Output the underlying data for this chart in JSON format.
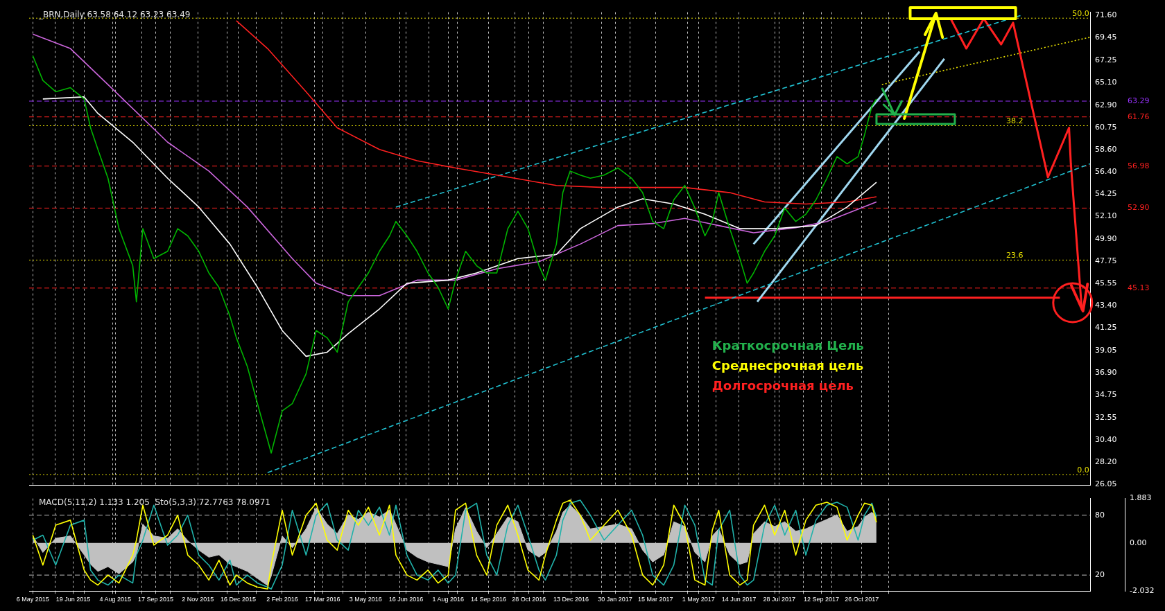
{
  "chart_data": [
    {
      "type": "line",
      "title": "_BRN,Daily 63.58 64.12 63.23 63.49",
      "x": [
        "2015-05-06",
        "2015-05-17",
        "2015-05-31",
        "2015-06-16",
        "2015-07-01",
        "2015-07-08",
        "2015-07-16",
        "2015-07-27",
        "2015-08-08",
        "2015-08-23",
        "2015-08-27",
        "2015-09-03",
        "2015-09-15",
        "2015-09-30",
        "2015-10-11",
        "2015-10-22",
        "2015-11-03",
        "2015-11-14",
        "2015-11-25",
        "2015-12-07",
        "2015-12-14",
        "2015-12-26",
        "2016-01-06",
        "2016-01-17",
        "2016-01-21",
        "2016-02-02",
        "2016-02-13",
        "2016-02-28",
        "2016-03-10",
        "2016-03-22",
        "2016-04-02",
        "2016-04-14",
        "2016-04-25",
        "2016-05-06",
        "2016-05-18",
        "2016-05-29",
        "2016-06-05",
        "2016-06-17",
        "2016-06-28",
        "2016-07-10",
        "2016-07-21",
        "2016-08-01",
        "2016-08-09",
        "2016-08-20",
        "2016-09-01",
        "2016-09-12",
        "2016-09-23",
        "2016-10-05",
        "2016-10-16",
        "2016-10-27",
        "2016-11-08",
        "2016-11-15",
        "2016-11-27",
        "2016-12-04",
        "2016-12-12",
        "2016-12-23",
        "2017-01-03",
        "2017-01-18",
        "2017-02-02",
        "2017-02-17",
        "2017-03-01",
        "2017-03-12",
        "2017-03-24",
        "2017-04-04",
        "2017-04-16",
        "2017-04-27",
        "2017-05-08",
        "2017-05-16",
        "2017-05-23",
        "2017-06-04",
        "2017-06-15",
        "2017-06-23",
        "2017-06-30",
        "2017-07-12",
        "2017-07-23",
        "2017-08-03",
        "2017-08-15",
        "2017-08-26",
        "2017-09-06",
        "2017-09-18",
        "2017-09-29",
        "2017-10-10",
        "2017-10-22",
        "2017-10-29",
        "2017-11-06",
        "2017-11-11"
      ],
      "series": [
        {
          "color": "#00b400",
          "values": [
            67.7,
            65.3,
            64.2,
            64.6,
            63.5,
            60.7,
            58.6,
            55.8,
            50.9,
            47.3,
            43.8,
            50.9,
            48.0,
            48.7,
            50.9,
            50.2,
            48.7,
            46.6,
            45.2,
            42.4,
            40.3,
            37.5,
            33.9,
            30.4,
            29.1,
            33.2,
            33.9,
            36.8,
            41.0,
            40.3,
            38.9,
            43.8,
            45.2,
            46.6,
            48.7,
            50.2,
            51.6,
            50.2,
            48.7,
            46.6,
            45.2,
            43.1,
            45.9,
            48.7,
            47.3,
            46.6,
            46.6,
            50.9,
            52.6,
            50.9,
            47.3,
            45.9,
            49.4,
            54.4,
            56.5,
            56.1,
            55.8,
            56.1,
            56.8,
            55.8,
            54.4,
            51.6,
            50.9,
            53.7,
            55.1,
            52.9,
            50.2,
            51.6,
            54.4,
            50.9,
            48.0,
            45.6,
            46.6,
            48.7,
            50.2,
            52.9,
            51.6,
            52.3,
            53.7,
            55.8,
            57.9,
            57.2,
            57.9,
            60.0,
            62.8,
            63.49
          ]
        },
        {
          "color": "#ffffff",
          "x": [
            "2015-05-17",
            "2015-07-01",
            "2015-07-16",
            "2015-08-23",
            "2015-09-30",
            "2015-11-03",
            "2015-12-07",
            "2016-01-06",
            "2016-02-02",
            "2016-02-28",
            "2016-03-22",
            "2016-04-14",
            "2016-05-18",
            "2016-06-17",
            "2016-08-01",
            "2016-09-01",
            "2016-10-16",
            "2016-11-27",
            "2016-12-23",
            "2017-02-02",
            "2017-03-01",
            "2017-04-04",
            "2017-05-08",
            "2017-06-15",
            "2017-07-23",
            "2017-09-06",
            "2017-10-10",
            "2017-11-11"
          ],
          "values": [
            63.5,
            63.7,
            62.1,
            59.3,
            55.8,
            53.0,
            49.4,
            45.2,
            41.0,
            38.5,
            38.9,
            40.7,
            43.1,
            45.6,
            45.9,
            46.6,
            48.0,
            48.4,
            50.9,
            53.0,
            53.8,
            53.3,
            52.3,
            50.9,
            50.9,
            51.2,
            53.0,
            55.4
          ]
        },
        {
          "color": "#cc66dd",
          "x": [
            "2015-05-06",
            "2015-06-16",
            "2015-07-27",
            "2015-09-30",
            "2015-11-14",
            "2015-12-26",
            "2016-02-13",
            "2016-03-10",
            "2016-04-14",
            "2016-05-18",
            "2016-06-28",
            "2016-08-09",
            "2016-09-23",
            "2016-11-08",
            "2016-12-23",
            "2017-02-02",
            "2017-03-12",
            "2017-04-16",
            "2017-05-23",
            "2017-06-30",
            "2017-08-15",
            "2017-09-18",
            "2017-11-11"
          ],
          "values": [
            69.8,
            68.4,
            64.9,
            59.3,
            56.5,
            53.0,
            48.0,
            45.6,
            44.4,
            44.4,
            45.9,
            45.9,
            47.0,
            47.7,
            49.4,
            51.2,
            51.4,
            51.9,
            51.2,
            50.5,
            51.0,
            51.6,
            53.5
          ]
        },
        {
          "color": "#ff2020",
          "x": [
            "2015-12-14",
            "2016-01-17",
            "2016-02-28",
            "2016-04-02",
            "2016-05-18",
            "2016-06-28",
            "2016-08-09",
            "2016-09-23",
            "2016-11-27",
            "2017-01-18",
            "2017-03-01",
            "2017-04-16",
            "2017-06-04",
            "2017-07-12",
            "2017-08-26",
            "2017-10-10",
            "2017-11-11"
          ],
          "values": [
            71.1,
            68.4,
            64.2,
            60.7,
            58.6,
            57.5,
            56.8,
            56.1,
            55.1,
            54.9,
            54.9,
            54.9,
            54.4,
            53.5,
            53.3,
            53.5,
            54.0
          ]
        },
        {
          "color": "#20c0d0",
          "line_style": "dashed",
          "x": [
            "2016-01-17",
            "2018-07-02"
          ],
          "values": [
            27.2,
            57.2
          ]
        },
        {
          "color": "#20c0d0",
          "line_style": "dashed",
          "x": [
            "2016-06-05",
            "2018-04-17"
          ],
          "values": [
            53.0,
            71.6
          ]
        },
        {
          "color": "#a0d8f0",
          "x": [
            "2017-06-30",
            "2017-12-28"
          ],
          "values": [
            49.4,
            68.1
          ]
        },
        {
          "color": "#a0d8f0",
          "x": [
            "2017-07-04",
            "2018-01-24"
          ],
          "values": [
            43.8,
            67.4
          ]
        },
        {
          "color": "#ff2020",
          "x": [
            "2017-05-08",
            "2018-05-30"
          ],
          "values": [
            44.2,
            44.2
          ]
        },
        {
          "color": "#e8e000",
          "line_style": "dotted",
          "x": [
            "2017-11-17",
            "2018-07-02"
          ],
          "values": [
            64.9,
            69.5
          ]
        },
        {
          "color": "#ff2020",
          "x": [
            "2018-01-31",
            "2018-02-17",
            "2018-03-08",
            "2018-03-27",
            "2018-04-09",
            "2018-05-17",
            "2018-06-09",
            "2018-06-11",
            "2018-06-23"
          ],
          "values": [
            71.3,
            68.4,
            71.3,
            68.8,
            70.9,
            55.9,
            60.7,
            57.2,
            43.0
          ]
        }
      ],
      "xlim": [
        "2015-05-02",
        "2018-07-02"
      ],
      "ylim": [
        25.98,
        71.93
      ],
      "xticks": [
        {
          "value": "2015-05-06",
          "label": null
        },
        {
          "value": "2015-05-30",
          "label": null
        },
        {
          "value": "2015-06-19",
          "label": null
        },
        {
          "value": "2015-07-01",
          "label": null
        },
        {
          "value": "2015-08-01",
          "label": null
        },
        {
          "value": "2015-08-04",
          "label": null
        },
        {
          "value": "2015-09-02",
          "label": null
        },
        {
          "value": "2015-09-17",
          "label": null
        },
        {
          "value": "2015-10-03",
          "label": null
        },
        {
          "value": "2015-11-02",
          "label": null
        },
        {
          "value": "2015-12-04",
          "label": null
        },
        {
          "value": "2015-12-16",
          "label": null
        },
        {
          "value": "2016-01-05",
          "label": null
        },
        {
          "value": "2016-02-02",
          "label": null
        },
        {
          "value": "2016-03-08",
          "label": null
        },
        {
          "value": "2016-03-17",
          "label": null
        },
        {
          "value": "2016-04-08",
          "label": null
        },
        {
          "value": "2016-05-03",
          "label": null
        },
        {
          "value": "2016-06-09",
          "label": null
        },
        {
          "value": "2016-06-16",
          "label": null
        },
        {
          "value": "2016-07-11",
          "label": null
        },
        {
          "value": "2016-08-01",
          "label": null
        },
        {
          "value": "2016-08-11",
          "label": null
        },
        {
          "value": "2016-09-14",
          "label": null
        },
        {
          "value": "2016-10-13",
          "label": null
        },
        {
          "value": "2016-10-28",
          "label": null
        },
        {
          "value": "2016-11-13",
          "label": null
        },
        {
          "value": "2016-12-13",
          "label": null
        },
        {
          "value": "2017-01-15",
          "label": null
        },
        {
          "value": "2017-01-30",
          "label": null
        },
        {
          "value": "2017-02-15",
          "label": null
        },
        {
          "value": "2017-03-15",
          "label": null
        },
        {
          "value": "2017-04-19",
          "label": null
        },
        {
          "value": "2017-05-01",
          "label": null
        },
        {
          "value": "2017-05-20",
          "label": null
        },
        {
          "value": "2017-06-14",
          "label": null
        },
        {
          "value": "2017-07-23",
          "label": null
        },
        {
          "value": "2017-07-28",
          "label": null
        },
        {
          "value": "2017-08-23",
          "label": null
        },
        {
          "value": "2017-09-12",
          "label": null
        },
        {
          "value": "2017-09-23",
          "label": null
        },
        {
          "value": "2017-10-26",
          "label": null
        },
        {
          "value": "2017-11-24",
          "label": null
        }
      ],
      "yticks": [
        {
          "value": 71.6,
          "label": "71.60"
        },
        69.45,
        67.25,
        {
          "value": 65.1,
          "label": "65.10"
        },
        {
          "value": 62.9,
          "label": "62.90"
        },
        60.75,
        {
          "value": 58.6,
          "label": "58.60"
        },
        {
          "value": 56.4,
          "label": "56.40"
        },
        54.25,
        {
          "value": 52.1,
          "label": "52.10"
        },
        {
          "value": 49.9,
          "label": "49.90"
        },
        47.75,
        45.55,
        {
          "value": 43.4,
          "label": "43.40"
        },
        41.25,
        39.05,
        {
          "value": 36.9,
          "label": "36.90"
        },
        34.75,
        32.55,
        {
          "value": 30.4,
          "label": "30.40"
        },
        {
          "value": 28.2,
          "label": "28.20"
        },
        26.05
      ],
      "ref_lines": [
        {
          "axis": "y",
          "value": 63.29,
          "label": "63.29",
          "color": "#9933ff",
          "line_style": "dashed"
        },
        {
          "axis": "y",
          "value": 61.76,
          "label": "61.76",
          "color": "#ff2020",
          "line_style": "dashed"
        },
        {
          "axis": "y",
          "value": 56.98,
          "label": "56.98",
          "color": "#ff2020",
          "line_style": "dashed"
        },
        {
          "axis": "y",
          "value": 52.9,
          "label": "52.90",
          "color": "#ff2020",
          "line_style": "dashed"
        },
        {
          "axis": "y",
          "value": 45.13,
          "label": "45.13",
          "color": "#ff2020",
          "line_style": "dashed"
        },
        {
          "axis": "y",
          "value": 71.35,
          "color": "#e8e000",
          "line_style": "dotted"
        },
        {
          "axis": "y",
          "value": 60.9,
          "color": "#e8e000",
          "line_style": "dotted"
        },
        {
          "axis": "y",
          "value": 47.85,
          "color": "#e8e000",
          "line_style": "dotted"
        },
        {
          "axis": "y",
          "value": 27.0,
          "color": "#e8e000",
          "line_style": "dotted"
        }
      ],
      "annotations": [
        "Краткосрочная Цель",
        "Среднесрочная цель",
        "Долгосрочная цель",
        {
          "text": "50.0",
          "x": "2018-07-01",
          "y": 71.35
        },
        {
          "text": "38.2",
          "x": "2018-04-20",
          "y": 60.9
        },
        {
          "text": "23.6",
          "x": "2018-04-20",
          "y": 47.85
        },
        {
          "text": "0.0",
          "x": "2018-07-01",
          "y": 27.0
        }
      ],
      "grid": "x",
      "legend": false,
      "tick_labels": "y",
      "marker": "none",
      "line_style": "solid"
    },
    {
      "type": "area",
      "title": "MACD(5,11,2) 1.133 1.205  Sto(5,3,3) 72.7763 78.0971",
      "x": [
        "2015-05-06",
        "2015-05-17",
        "2015-05-31",
        "2015-06-16",
        "2015-07-01",
        "2015-07-08",
        "2015-07-16",
        "2015-07-27",
        "2015-08-08",
        "2015-08-23",
        "2015-08-27",
        "2015-09-03",
        "2015-09-15",
        "2015-09-30",
        "2015-10-11",
        "2015-10-22",
        "2015-11-03",
        "2015-11-14",
        "2015-11-25",
        "2015-12-07",
        "2015-12-14",
        "2015-12-26",
        "2016-01-06",
        "2016-01-17",
        "2016-01-21",
        "2016-02-02",
        "2016-02-13",
        "2016-02-28",
        "2016-03-10",
        "2016-03-22",
        "2016-04-02",
        "2016-04-14",
        "2016-04-25",
        "2016-05-06",
        "2016-05-18",
        "2016-05-29",
        "2016-06-05",
        "2016-06-17",
        "2016-06-28",
        "2016-07-10",
        "2016-07-21",
        "2016-08-01",
        "2016-08-09",
        "2016-08-20",
        "2016-09-01",
        "2016-09-12",
        "2016-09-23",
        "2016-10-05",
        "2016-10-16",
        "2016-10-27",
        "2016-11-08",
        "2016-11-15",
        "2016-11-27",
        "2016-12-04",
        "2016-12-12",
        "2016-12-23",
        "2017-01-03",
        "2017-01-18",
        "2017-02-02",
        "2017-02-17",
        "2017-03-01",
        "2017-03-12",
        "2017-03-24",
        "2017-04-04",
        "2017-04-16",
        "2017-04-27",
        "2017-05-08",
        "2017-05-16",
        "2017-05-23",
        "2017-06-04",
        "2017-06-15",
        "2017-06-23",
        "2017-06-30",
        "2017-07-12",
        "2017-07-23",
        "2017-08-03",
        "2017-08-15",
        "2017-08-26",
        "2017-09-06",
        "2017-09-18",
        "2017-09-29",
        "2017-10-10",
        "2017-10-22",
        "2017-10-29",
        "2017-11-06",
        "2017-11-11"
      ],
      "series": [
        {
          "color": "#c0c0c0",
          "values": [
            0.3,
            -0.4,
            0.2,
            0.3,
            -0.5,
            -0.9,
            -1.2,
            -1.0,
            -1.3,
            -0.8,
            -0.5,
            0.8,
            0.3,
            0.2,
            0.6,
            0.1,
            -0.3,
            -0.6,
            -0.5,
            -0.9,
            -1.0,
            -1.2,
            -1.5,
            -1.8,
            -1.4,
            0.3,
            -0.2,
            0.6,
            1.5,
            0.8,
            0.4,
            1.2,
            1.0,
            1.3,
            1.1,
            1.4,
            0.8,
            -0.3,
            -0.6,
            -0.8,
            -0.9,
            -1.0,
            0.6,
            1.5,
            0.5,
            -0.2,
            0.4,
            1.1,
            0.9,
            -0.3,
            -0.6,
            -0.4,
            0.5,
            1.3,
            1.6,
            1.2,
            0.6,
            0.7,
            0.8,
            0.6,
            -0.3,
            -0.8,
            -0.5,
            0.9,
            0.7,
            -0.4,
            -0.8,
            0.3,
            0.6,
            -0.5,
            -0.9,
            -0.8,
            0.4,
            0.9,
            0.7,
            0.9,
            0.5,
            0.6,
            0.8,
            1.0,
            1.2,
            0.5,
            0.7,
            1.1,
            1.3,
            1.13
          ]
        },
        {
          "type": "line",
          "axis": "y2",
          "color": "#ffff00",
          "values": [
            60,
            30,
            70,
            75,
            25,
            15,
            10,
            20,
            12,
            40,
            55,
            90,
            50,
            60,
            80,
            40,
            30,
            15,
            35,
            10,
            20,
            12,
            8,
            6,
            30,
            85,
            40,
            80,
            92,
            55,
            45,
            85,
            70,
            88,
            60,
            90,
            40,
            20,
            15,
            25,
            12,
            20,
            85,
            92,
            40,
            20,
            70,
            90,
            60,
            25,
            15,
            40,
            75,
            92,
            95,
            80,
            55,
            70,
            85,
            60,
            20,
            10,
            30,
            90,
            70,
            15,
            10,
            65,
            85,
            20,
            10,
            15,
            70,
            90,
            60,
            85,
            40,
            75,
            90,
            93,
            88,
            55,
            80,
            92,
            90,
            72.8
          ]
        },
        {
          "type": "line",
          "axis": "y2",
          "color": "#20b2aa",
          "values": [
            55,
            60,
            30,
            70,
            75,
            25,
            15,
            10,
            20,
            12,
            40,
            55,
            90,
            50,
            60,
            80,
            40,
            30,
            15,
            35,
            10,
            20,
            12,
            8,
            6,
            30,
            85,
            40,
            80,
            92,
            55,
            45,
            85,
            70,
            88,
            60,
            90,
            40,
            20,
            15,
            25,
            12,
            20,
            85,
            92,
            40,
            20,
            70,
            90,
            60,
            25,
            15,
            40,
            75,
            92,
            95,
            80,
            55,
            70,
            85,
            60,
            20,
            10,
            30,
            90,
            70,
            15,
            10,
            65,
            85,
            20,
            10,
            15,
            70,
            90,
            60,
            85,
            40,
            75,
            90,
            93,
            88,
            55,
            80,
            92,
            78.1
          ]
        }
      ],
      "xlim": [
        "2015-05-02",
        "2018-07-02"
      ],
      "ylim": [
        -2.032,
        1.883
      ],
      "yticks": [
        1.883,
        {
          "value": 0,
          "label": "0.00"
        },
        -2.032
      ],
      "y2lim": [
        4,
        96.7
      ],
      "y2ticks": [
        80,
        20
      ],
      "xticks": [
        {
          "value": "2015-05-06",
          "label": "6 May 2015"
        },
        {
          "value": "2015-05-30",
          "label": null
        },
        {
          "value": "2015-06-19",
          "label": "19 Jun 2015"
        },
        {
          "value": "2015-07-01",
          "label": null
        },
        {
          "value": "2015-08-01",
          "label": null
        },
        {
          "value": "2015-08-04",
          "label": "4 Aug 2015"
        },
        {
          "value": "2015-09-02",
          "label": null
        },
        {
          "value": "2015-09-17",
          "label": "17 Sep 2015"
        },
        {
          "value": "2015-10-03",
          "label": null
        },
        {
          "value": "2015-11-02",
          "label": "2 Nov 2015"
        },
        {
          "value": "2015-12-04",
          "label": null
        },
        {
          "value": "2015-12-16",
          "label": "16 Dec 2015"
        },
        {
          "value": "2016-01-05",
          "label": null
        },
        {
          "value": "2016-02-02",
          "label": "2 Feb 2016"
        },
        {
          "value": "2016-03-08",
          "label": null
        },
        {
          "value": "2016-03-17",
          "label": "17 Mar 2016"
        },
        {
          "value": "2016-04-08",
          "label": null
        },
        {
          "value": "2016-05-03",
          "label": "3 May 2016"
        },
        {
          "value": "2016-06-09",
          "label": null
        },
        {
          "value": "2016-06-16",
          "label": "16 Jun 2016"
        },
        {
          "value": "2016-07-11",
          "label": null
        },
        {
          "value": "2016-08-01",
          "label": "1 Aug 2016"
        },
        {
          "value": "2016-08-11",
          "label": null
        },
        {
          "value": "2016-09-14",
          "label": "14 Sep 2016"
        },
        {
          "value": "2016-10-13",
          "label": null
        },
        {
          "value": "2016-10-28",
          "label": "28 Oct 2016"
        },
        {
          "value": "2016-11-13",
          "label": null
        },
        {
          "value": "2016-12-13",
          "label": "13 Dec 2016"
        },
        {
          "value": "2017-01-15",
          "label": null
        },
        {
          "value": "2017-01-30",
          "label": "30 Jan 2017"
        },
        {
          "value": "2017-02-15",
          "label": null
        },
        {
          "value": "2017-03-15",
          "label": "15 Mar 2017"
        },
        {
          "value": "2017-04-19",
          "label": null
        },
        {
          "value": "2017-05-01",
          "label": "1 May 2017"
        },
        {
          "value": "2017-05-20",
          "label": null
        },
        {
          "value": "2017-06-14",
          "label": "14 Jun 2017"
        },
        {
          "value": "2017-07-23",
          "label": null
        },
        {
          "value": "2017-07-28",
          "label": "28 Jul 2017"
        },
        {
          "value": "2017-08-23",
          "label": null
        },
        {
          "value": "2017-09-12",
          "label": "12 Sep 2017"
        },
        {
          "value": "2017-09-23",
          "label": null
        },
        {
          "value": "2017-10-26",
          "label": "26 Oct 2017"
        },
        {
          "value": "2017-11-24",
          "label": null
        }
      ],
      "ref_lines": [
        {
          "axis": "y2",
          "value": 80,
          "color": "#c0c0c0",
          "line_style": "dashed"
        },
        {
          "axis": "y2",
          "value": 20,
          "color": "#c0c0c0",
          "line_style": "dashed"
        }
      ],
      "grid": "x",
      "legend": false,
      "marker": "none",
      "line_style": "solid"
    }
  ]
}
